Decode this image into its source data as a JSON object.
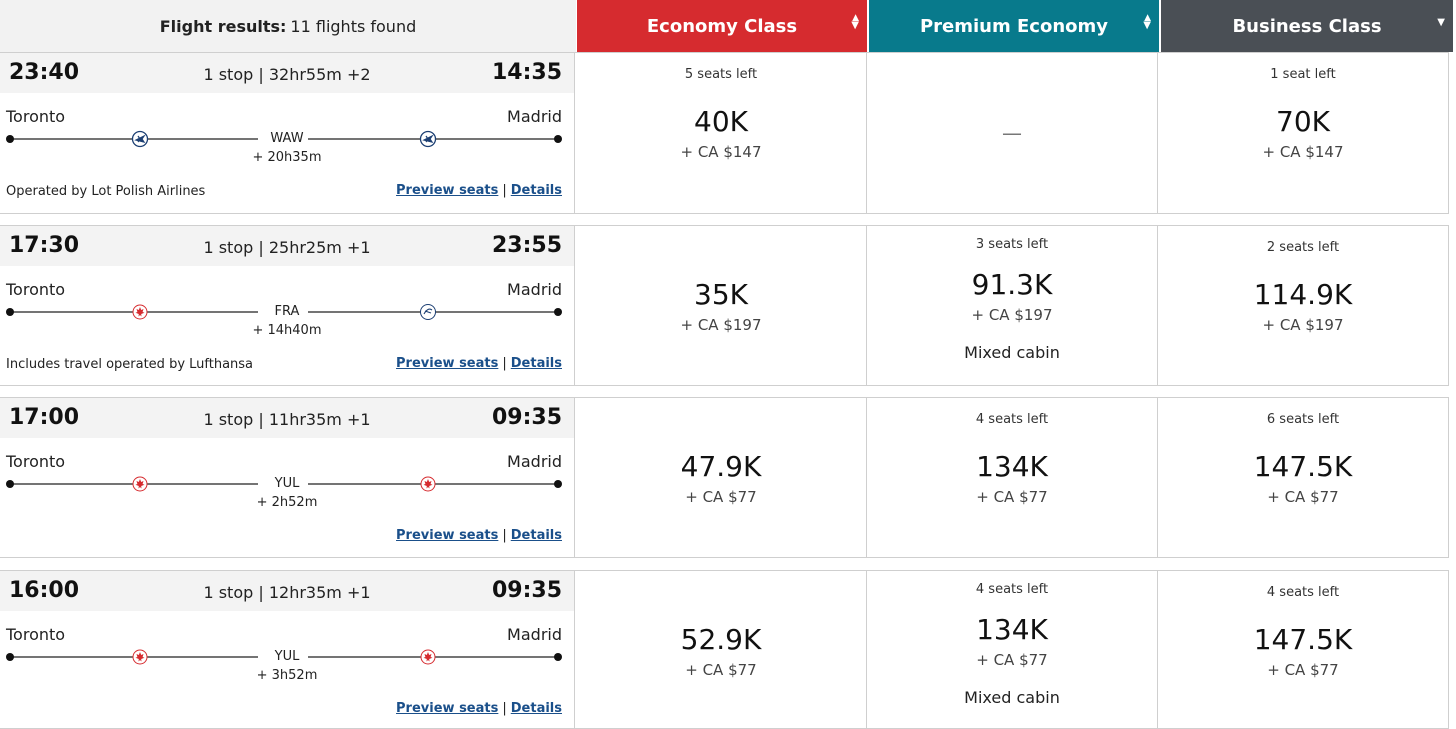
{
  "header": {
    "results_label": "Flight results:",
    "results_count": "11 flights found",
    "cabins": [
      {
        "label": "Economy Class",
        "color": "#d62b2f"
      },
      {
        "label": "Premium Economy",
        "color": "#087a8c"
      },
      {
        "label": "Business Class",
        "color": "#4a4f55"
      }
    ]
  },
  "flights": [
    {
      "depart": "23:40",
      "arrive": "14:35",
      "stops": "1 stop | 32hr55m +2",
      "origin": "Toronto",
      "destination": "Madrid",
      "connection": "WAW",
      "layover": "+ 20h35m",
      "carrier_icons": [
        "lot-airlines-icon",
        "lot-airlines-icon"
      ],
      "operated": "Operated by Lot Polish Airlines",
      "preview": "Preview seats",
      "details": "Details",
      "fares": [
        {
          "seats": "5 seats left",
          "points": "40K",
          "tax": "+ CA $147",
          "note": ""
        },
        {
          "seats": "",
          "points": "",
          "tax": "",
          "note": "",
          "unavailable": "—"
        },
        {
          "seats": "1 seat left",
          "points": "70K",
          "tax": "+ CA $147",
          "note": ""
        }
      ]
    },
    {
      "depart": "17:30",
      "arrive": "23:55",
      "stops": "1 stop | 25hr25m +1",
      "origin": "Toronto",
      "destination": "Madrid",
      "connection": "FRA",
      "layover": "+ 14h40m",
      "carrier_icons": [
        "air-canada-icon",
        "lufthansa-icon"
      ],
      "operated": "Includes travel operated by Lufthansa",
      "preview": "Preview seats",
      "details": "Details",
      "fares": [
        {
          "seats": "",
          "points": "35K",
          "tax": "+ CA $197",
          "note": ""
        },
        {
          "seats": "3 seats left",
          "points": "91.3K",
          "tax": "+ CA $197",
          "note": "Mixed cabin"
        },
        {
          "seats": "2 seats left",
          "points": "114.9K",
          "tax": "+ CA $197",
          "note": ""
        }
      ]
    },
    {
      "depart": "17:00",
      "arrive": "09:35",
      "stops": "1 stop | 11hr35m +1",
      "origin": "Toronto",
      "destination": "Madrid",
      "connection": "YUL",
      "layover": "+ 2h52m",
      "carrier_icons": [
        "air-canada-icon",
        "air-canada-icon"
      ],
      "operated": "",
      "preview": "Preview seats",
      "details": "Details",
      "fares": [
        {
          "seats": "",
          "points": "47.9K",
          "tax": "+ CA $77",
          "note": ""
        },
        {
          "seats": "4 seats left",
          "points": "134K",
          "tax": "+ CA $77",
          "note": ""
        },
        {
          "seats": "6 seats left",
          "points": "147.5K",
          "tax": "+ CA $77",
          "note": ""
        }
      ]
    },
    {
      "depart": "16:00",
      "arrive": "09:35",
      "stops": "1 stop | 12hr35m +1",
      "origin": "Toronto",
      "destination": "Madrid",
      "connection": "YUL",
      "layover": "+ 3h52m",
      "carrier_icons": [
        "air-canada-icon",
        "air-canada-icon"
      ],
      "operated": "",
      "preview": "Preview seats",
      "details": "Details",
      "fares": [
        {
          "seats": "",
          "points": "52.9K",
          "tax": "+ CA $77",
          "note": ""
        },
        {
          "seats": "4 seats left",
          "points": "134K",
          "tax": "+ CA $77",
          "note": "Mixed cabin"
        },
        {
          "seats": "4 seats left",
          "points": "147.5K",
          "tax": "+ CA $77",
          "note": ""
        }
      ]
    }
  ]
}
